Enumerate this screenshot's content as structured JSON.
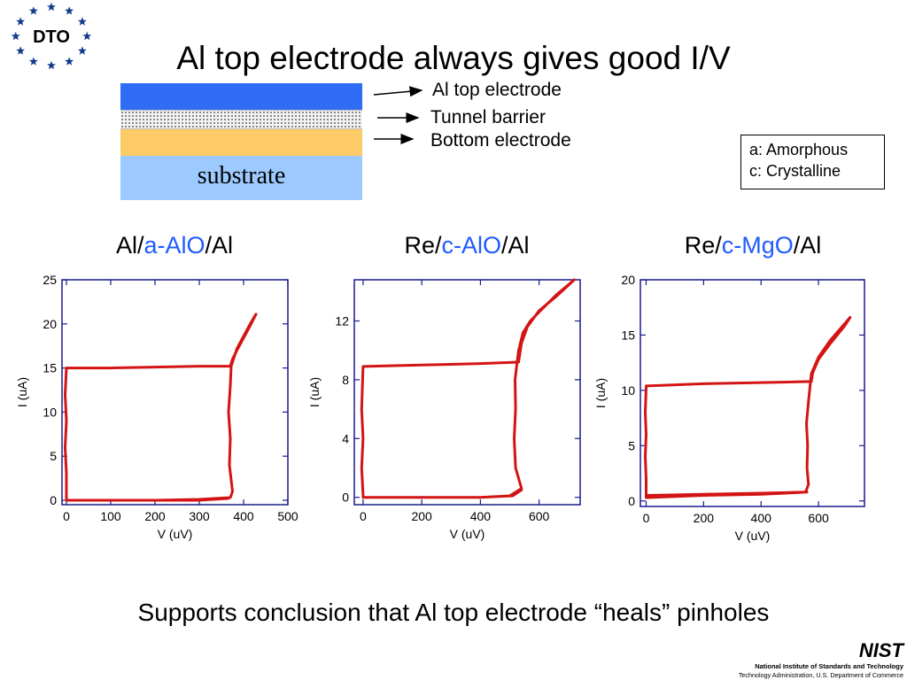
{
  "logo": {
    "text": "DTO",
    "color": "#123a8c"
  },
  "title": "Al top electrode always gives good I/V",
  "stack": {
    "substrate_label": "substrate",
    "labels": [
      "Al top electrode",
      "Tunnel barrier",
      "Bottom electrode"
    ],
    "colors": {
      "top": "#2f6df5",
      "bottom": "#fccb66",
      "substrate": "#9ccaff"
    }
  },
  "legend": {
    "line1": "a: Amorphous",
    "line2": "c: Crystalline"
  },
  "panels": [
    {
      "title": {
        "pre": "Al/",
        "mid": "a-AlO",
        "post": "/Al"
      }
    },
    {
      "title": {
        "pre": "Re/",
        "mid": "c-AlO",
        "post": "/Al"
      }
    },
    {
      "title": {
        "pre": "Re/",
        "mid": "c-MgO",
        "post": "/Al"
      }
    }
  ],
  "chart_data": [
    {
      "type": "line",
      "xlabel": "V (uV)",
      "ylabel": "I (uA)",
      "xlim": [
        -10,
        500
      ],
      "ylim": [
        -0.5,
        25
      ],
      "xticks": [
        0,
        100,
        200,
        300,
        400,
        500
      ],
      "yticks": [
        0,
        5,
        10,
        15,
        20,
        25
      ],
      "series": [
        {
          "color": "#d41414",
          "x": [
            0,
            100,
            200,
            300,
            370,
            375,
            368,
            370,
            366,
            370,
            372,
            385,
            400,
            415,
            428,
            415,
            400,
            385,
            375,
            370,
            370,
            300,
            200,
            100,
            0,
            -3,
            0,
            -3,
            0,
            0,
            100,
            200,
            300,
            365
          ],
          "y": [
            0,
            0,
            0,
            0.1,
            0.3,
            1,
            4,
            7,
            10,
            13,
            15.2,
            17.2,
            18.6,
            20,
            21.1,
            19.8,
            18.4,
            17,
            16,
            15.2,
            15.2,
            15.2,
            15.1,
            15.0,
            15.0,
            12,
            9,
            6,
            3,
            0,
            0,
            0,
            0,
            0.2
          ]
        }
      ]
    },
    {
      "type": "line",
      "xlabel": "V (uV)",
      "ylabel": "I (uA)",
      "xlim": [
        -30,
        740
      ],
      "ylim": [
        -0.5,
        14.8
      ],
      "xticks": [
        0,
        200,
        400,
        600
      ],
      "yticks": [
        0,
        4,
        8,
        12
      ],
      "series": [
        {
          "color": "#d41414",
          "x": [
            0,
            200,
            400,
            500,
            540,
            520,
            515,
            520,
            518,
            525,
            530,
            545,
            570,
            610,
            660,
            720,
            660,
            600,
            560,
            540,
            530,
            400,
            200,
            0,
            -5,
            0,
            -5,
            0,
            0,
            200,
            400,
            510,
            540
          ],
          "y": [
            0,
            0,
            0,
            0.1,
            0.6,
            2,
            4,
            6,
            8,
            9.2,
            10,
            11.2,
            12,
            12.8,
            13.8,
            14.8,
            13.7,
            12.7,
            11.6,
            10.5,
            9.2,
            9.1,
            9.0,
            8.9,
            6,
            4,
            2,
            0.2,
            0,
            0,
            0,
            0.1,
            0.5
          ]
        }
      ]
    },
    {
      "type": "line",
      "xlabel": "V (uV)",
      "ylabel": "I (uA)",
      "xlim": [
        -20,
        760
      ],
      "ylim": [
        -0.5,
        20
      ],
      "xticks": [
        0,
        200,
        400,
        600
      ],
      "yticks": [
        0,
        5,
        10,
        15,
        20
      ],
      "series": [
        {
          "color": "#d41414",
          "x": [
            0,
            200,
            400,
            555,
            565,
            560,
            562,
            558,
            565,
            575,
            600,
            640,
            690,
            710,
            690,
            640,
            600,
            580,
            575,
            400,
            200,
            0,
            0,
            -3,
            0,
            -3,
            0,
            0,
            200,
            400,
            560
          ],
          "y": [
            0.5,
            0.6,
            0.7,
            0.8,
            1.5,
            3,
            5,
            7,
            9,
            11.5,
            13,
            14.5,
            16,
            16.6,
            15.8,
            14.2,
            12.8,
            11.6,
            10.8,
            10.7,
            10.6,
            10.4,
            10.2,
            8,
            6,
            4,
            2,
            0.3,
            0.5,
            0.6,
            0.8
          ]
        }
      ]
    }
  ],
  "conclusion": "Supports conclusion that Al top electrode “heals” pinholes",
  "footer": {
    "nist_logo": "NIST",
    "line1": "National Institute of Standards and Technology",
    "line2": "Technology Administration, U.S. Department of Commerce"
  }
}
